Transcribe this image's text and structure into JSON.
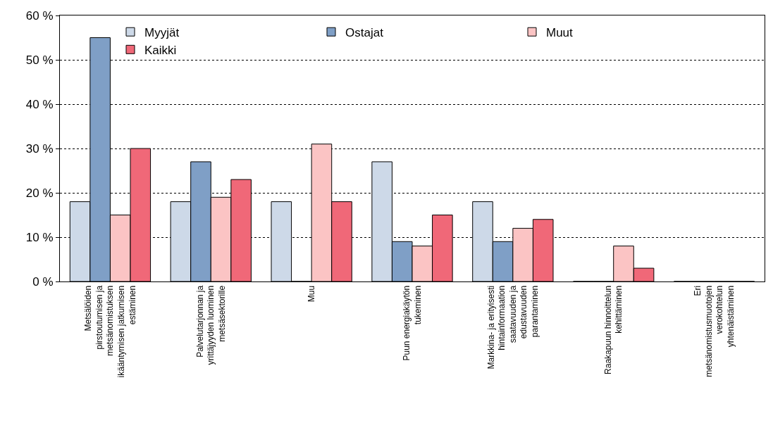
{
  "chart_data": {
    "type": "bar",
    "categories": [
      "Metsälöiden\npirstoutumisen ja\nmetsänomistuksen\nikääntymisen jatkumisen\nestäminen",
      "Palvelutarjonnan ja\nyrittäjyyden luominen\nmetsäsektorille",
      "Muu",
      "Puun energiakäytön\ntukeminen",
      "Markkina- ja erityisesti\nhintainformaation\nsaatavuuden ja\nedustavuuden\nparantaminen",
      "Raakapuun hinnoittelun\nkehittäminen",
      "Eri\nmetsänomistusmuotojen\nverokohtelun\nyhtenäistäminen"
    ],
    "series": [
      {
        "name": "Myyjät",
        "color": "#cdd9e8",
        "values": [
          18,
          18,
          18,
          27,
          18,
          0,
          0
        ]
      },
      {
        "name": "Ostajat",
        "color": "#7f9fc6",
        "values": [
          55,
          27,
          0,
          9,
          9,
          0,
          0
        ]
      },
      {
        "name": "Muut",
        "color": "#fbc4c4",
        "values": [
          15,
          19,
          31,
          8,
          12,
          8,
          0
        ]
      },
      {
        "name": "Kaikki",
        "color": "#f06878",
        "values": [
          30,
          23,
          18,
          15,
          14,
          3,
          0
        ]
      }
    ],
    "ylim": [
      0,
      60
    ],
    "yticks": [
      {
        "value": 0,
        "label": "0 %"
      },
      {
        "value": 10,
        "label": "10 %"
      },
      {
        "value": 20,
        "label": "20 %"
      },
      {
        "value": 30,
        "label": "30 %"
      },
      {
        "value": 40,
        "label": "40 %"
      },
      {
        "value": 50,
        "label": "50 %"
      },
      {
        "value": 60,
        "label": "60 %"
      }
    ],
    "grid": "y",
    "legend": "top"
  }
}
